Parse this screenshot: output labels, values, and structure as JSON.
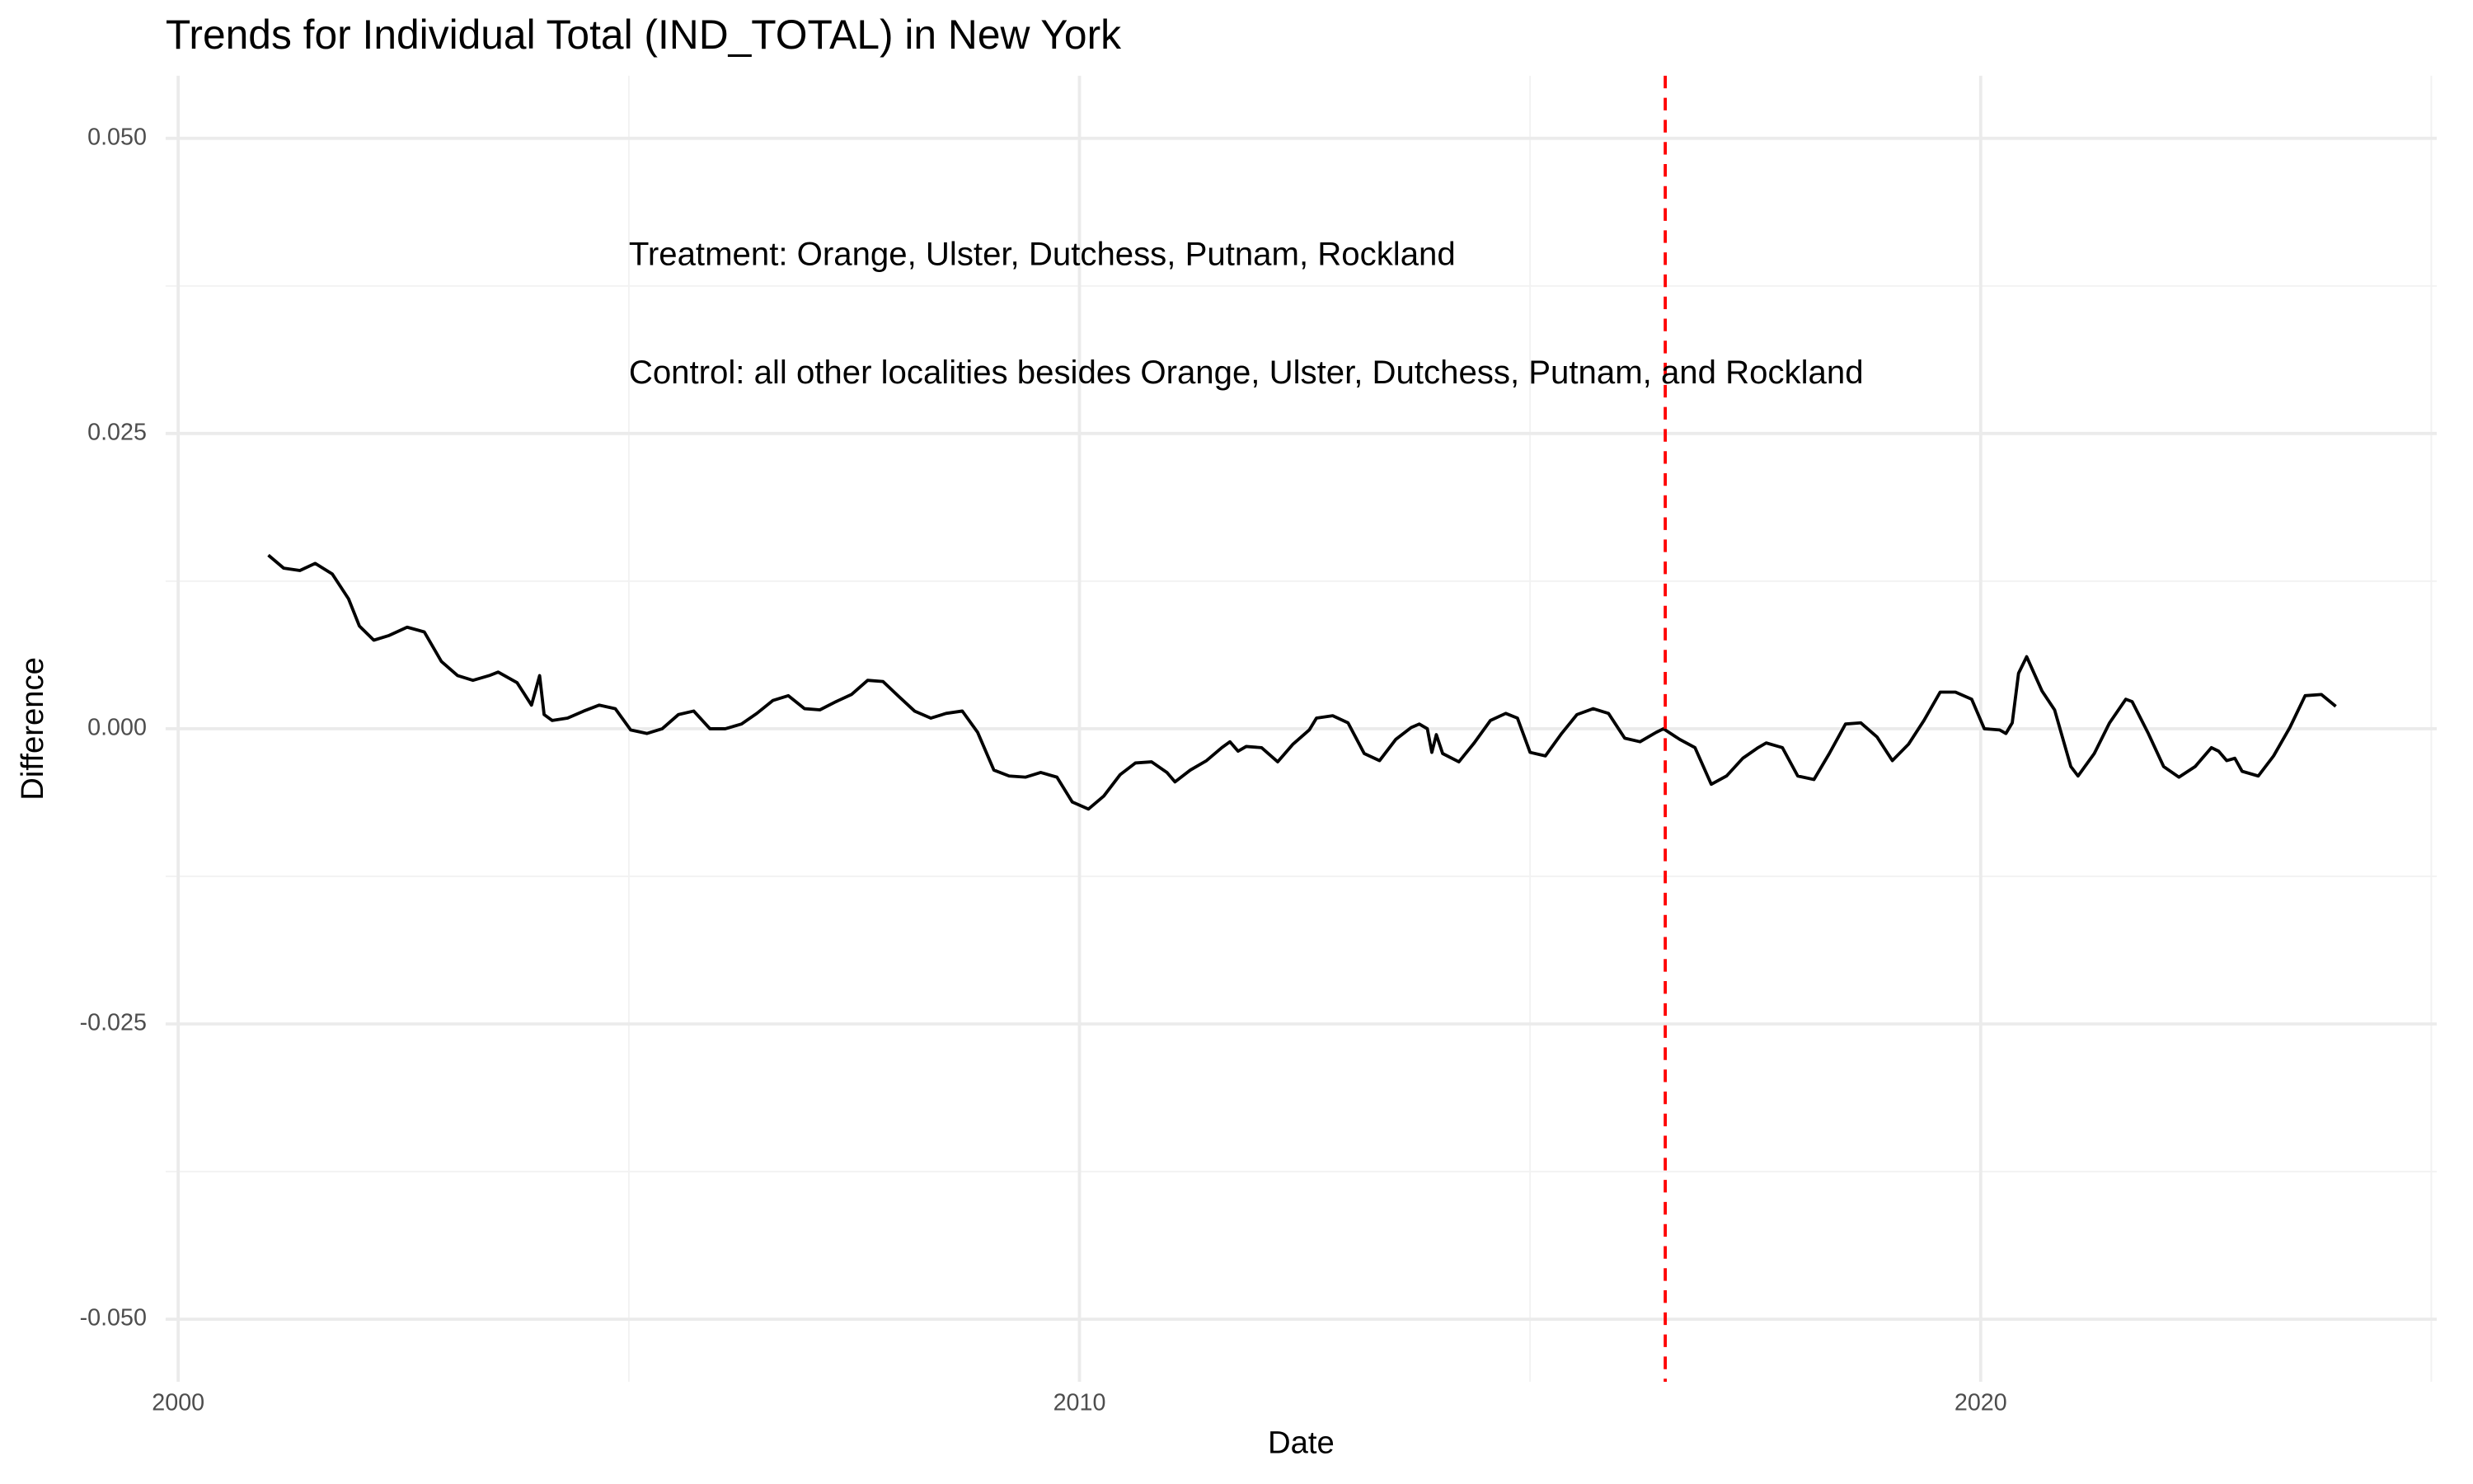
{
  "chart_data": {
    "type": "line",
    "title": "Trends for Individual Total (IND_TOTAL) in New York",
    "x_label": "Date",
    "y_label": "Difference",
    "x": [
      2001.0,
      2001.17,
      2001.35,
      2001.52,
      2001.71,
      2001.89,
      2002.01,
      2002.17,
      2002.34,
      2002.54,
      2002.73,
      2002.92,
      2003.1,
      2003.27,
      2003.45,
      2003.55,
      2003.76,
      2003.92,
      2004.01,
      2004.06,
      2004.15,
      2004.32,
      2004.5,
      2004.67,
      2004.85,
      2005.02,
      2005.2,
      2005.37,
      2005.55,
      2005.72,
      2005.9,
      2006.07,
      2006.25,
      2006.42,
      2006.6,
      2006.77,
      2006.95,
      2007.12,
      2007.3,
      2007.47,
      2007.65,
      2007.82,
      2008.0,
      2008.17,
      2008.35,
      2008.52,
      2008.7,
      2008.87,
      2009.05,
      2009.22,
      2009.4,
      2009.57,
      2009.75,
      2009.92,
      2010.1,
      2010.27,
      2010.45,
      2010.62,
      2010.8,
      2010.97,
      2011.06,
      2011.23,
      2011.41,
      2011.58,
      2011.67,
      2011.76,
      2011.85,
      2012.02,
      2012.2,
      2012.37,
      2012.55,
      2012.63,
      2012.81,
      2012.98,
      2013.16,
      2013.33,
      2013.51,
      2013.68,
      2013.77,
      2013.86,
      2013.91,
      2013.96,
      2014.03,
      2014.21,
      2014.38,
      2014.56,
      2014.73,
      2014.86,
      2015.0,
      2015.17,
      2015.35,
      2015.52,
      2015.7,
      2015.87,
      2016.05,
      2016.22,
      2016.4,
      2016.48,
      2016.66,
      2016.83,
      2017.01,
      2017.18,
      2017.36,
      2017.53,
      2017.62,
      2017.8,
      2017.97,
      2018.15,
      2018.32,
      2018.5,
      2018.67,
      2018.85,
      2019.02,
      2019.2,
      2019.37,
      2019.55,
      2019.72,
      2019.9,
      2020.04,
      2020.21,
      2020.28,
      2020.35,
      2020.42,
      2020.51,
      2020.68,
      2020.82,
      2021.0,
      2021.08,
      2021.26,
      2021.43,
      2021.61,
      2021.68,
      2021.86,
      2022.03,
      2022.2,
      2022.38,
      2022.56,
      2022.64,
      2022.73,
      2022.82,
      2022.9,
      2023.08,
      2023.25,
      2023.43,
      2023.6,
      2023.78,
      2023.94
    ],
    "series": [
      {
        "color": "#000000",
        "values": [
          0.0147,
          0.0136,
          0.0134,
          0.014,
          0.0131,
          0.011,
          0.0087,
          0.0075,
          0.0079,
          0.0086,
          0.0082,
          0.0057,
          0.0045,
          0.0041,
          0.0045,
          0.0048,
          0.0039,
          0.002,
          0.0045,
          0.0012,
          0.0007,
          0.0009,
          0.0015,
          0.002,
          0.0017,
          -0.0001,
          -0.0004,
          0.0,
          0.0012,
          0.0015,
          0.0,
          0.0,
          0.0004,
          0.0013,
          0.0024,
          0.0028,
          0.0017,
          0.0016,
          0.0023,
          0.0029,
          0.0041,
          0.004,
          0.0027,
          0.0015,
          0.0009,
          0.0013,
          0.0015,
          -0.0003,
          -0.0035,
          -0.004,
          -0.0041,
          -0.0037,
          -0.0041,
          -0.0062,
          -0.0068,
          -0.0057,
          -0.0039,
          -0.0029,
          -0.0028,
          -0.0037,
          -0.0045,
          -0.0035,
          -0.0027,
          -0.0016,
          -0.0011,
          -0.0019,
          -0.0015,
          -0.0016,
          -0.0028,
          -0.0013,
          -0.0001,
          0.0009,
          0.0011,
          0.0005,
          -0.0021,
          -0.0027,
          -0.0009,
          0.0001,
          0.0004,
          0.0,
          -0.002,
          -0.0005,
          -0.0021,
          -0.0028,
          -0.0012,
          0.0007,
          0.0013,
          0.0009,
          -0.002,
          -0.0023,
          -0.0004,
          0.0012,
          0.0017,
          0.0013,
          -0.0008,
          -0.0011,
          -0.0003,
          0.0,
          -0.0009,
          -0.0016,
          -0.0047,
          -0.004,
          -0.0025,
          -0.0016,
          -0.0012,
          -0.0016,
          -0.004,
          -0.0043,
          -0.0021,
          0.0004,
          0.0005,
          -0.0007,
          -0.0027,
          -0.0013,
          0.0007,
          0.0031,
          0.0031,
          0.0025,
          0.0,
          -0.0001,
          -0.0004,
          0.0005,
          0.0047,
          0.0061,
          0.0032,
          0.0016,
          -0.0032,
          -0.004,
          -0.0021,
          0.0005,
          0.0025,
          0.0023,
          -0.0004,
          -0.0032,
          -0.0041,
          -0.0032,
          -0.0016,
          -0.0019,
          -0.0027,
          -0.0025,
          -0.0036,
          -0.004,
          -0.0023,
          0.0001,
          0.0028,
          0.0029,
          0.0019
        ]
      }
    ],
    "xlim": [
      1999.86,
      2025.06
    ],
    "ylim": [
      -0.0553,
      0.0553
    ],
    "xticks": [
      2000,
      2010,
      2020
    ],
    "x_minor_ticks": [
      2005,
      2015,
      2025
    ],
    "yticks": [
      {
        "value": -0.05,
        "label": "-0.050"
      },
      {
        "value": -0.025,
        "label": "-0.025"
      },
      {
        "value": 0,
        "label": "0.000"
      },
      {
        "value": 0.025,
        "label": "0.025"
      },
      {
        "value": 0.05,
        "label": "0.050"
      }
    ],
    "y_minor_ticks": [
      -0.0375,
      -0.0125,
      0.0125,
      0.0375
    ],
    "grid": true,
    "vline": {
      "x": 2016.5,
      "color": "#ff0000"
    },
    "annotations": [
      {
        "text": "Treatment: Orange, Ulster, Dutchess, Putnam, Rockland",
        "x": 2005,
        "y": 0.04
      },
      {
        "text": "Control: all other localities besides Orange, Ulster, Dutchess, Putnam, and Rockland",
        "x": 2005,
        "y": 0.03
      }
    ]
  }
}
